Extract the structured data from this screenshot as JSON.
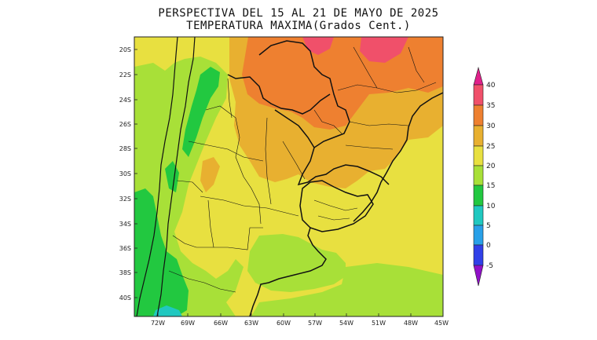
{
  "title_line1": "PERSPECTIVA DEL 15 AL 21 DE MAYO DE 2025",
  "title_line2": "TEMPERATURA MAXIMA(Grados Cent.)",
  "lat_labels": [
    "20S",
    "22S",
    "24S",
    "26S",
    "28S",
    "30S",
    "32S",
    "34S",
    "36S",
    "38S",
    "40S"
  ],
  "lon_labels": [
    "72W",
    "69W",
    "66W",
    "63W",
    "60W",
    "57W",
    "54W",
    "51W",
    "48W",
    "45W"
  ],
  "colorbar": {
    "tick_labels": [
      "40",
      "35",
      "30",
      "25",
      "20",
      "15",
      "10",
      "5",
      "0",
      "-5"
    ],
    "colors": [
      "#f0506a",
      "#ee8030",
      "#e8b030",
      "#e8e040",
      "#a8e038",
      "#22c840",
      "#20c8c0",
      "#28a0e8",
      "#3040e8"
    ],
    "top_arrow_color": "#e0208a",
    "bottom_arrow_color": "#9010c8"
  },
  "field_colors": {
    "t20_25": "#e8e040",
    "t25_30": "#e8b030",
    "t30_35": "#ee8030",
    "t35_40": "#f0506a",
    "t15_20": "#a8e038",
    "t10_15": "#22c840",
    "t5_10": "#20c8c0"
  }
}
